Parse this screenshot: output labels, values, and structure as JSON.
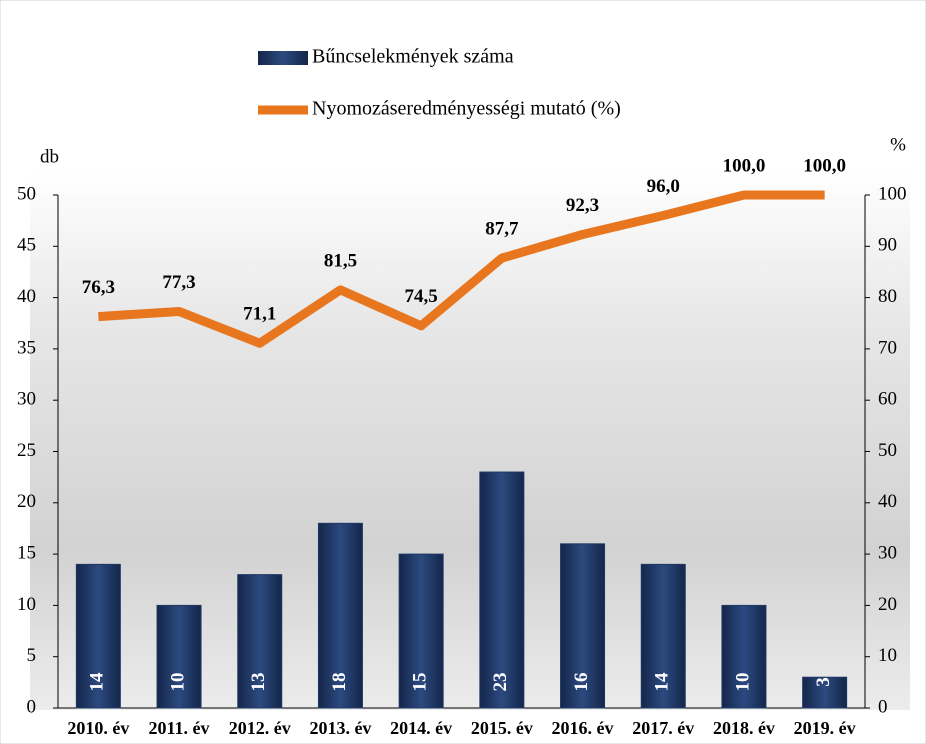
{
  "chart_data": {
    "type": "bar",
    "categories": [
      "2010. év",
      "2011. év",
      "2012. év",
      "2013. év",
      "2014. év",
      "2015. év",
      "2016. év",
      "2017. év",
      "2018. év",
      "2019. év"
    ],
    "series": [
      {
        "name": "Bűncselekmények száma",
        "type": "bar",
        "color": "#1f3864",
        "values": [
          14,
          10,
          13,
          18,
          15,
          23,
          16,
          14,
          10,
          3
        ]
      },
      {
        "name": "Nyomozáseredményességi mutató (%)",
        "type": "line",
        "axis": "y2",
        "color": "#e8761e",
        "values": [
          76.3,
          77.3,
          71.1,
          81.5,
          74.5,
          87.7,
          92.3,
          96.0,
          100.0,
          100.0
        ],
        "value_labels": [
          "76,3",
          "77,3",
          "71,1",
          "81,5",
          "74,5",
          "87,7",
          "92,3",
          "96,0",
          "100,0",
          "100,0"
        ]
      }
    ],
    "y_label": "db",
    "y2_label": "%",
    "ylim": [
      0,
      50
    ],
    "yticks": [
      0,
      5,
      10,
      15,
      20,
      25,
      30,
      35,
      40,
      45,
      50
    ],
    "y2lim": [
      0,
      100
    ],
    "y2ticks": [
      0,
      10,
      20,
      30,
      40,
      50,
      60,
      70,
      80,
      90,
      100
    ]
  }
}
